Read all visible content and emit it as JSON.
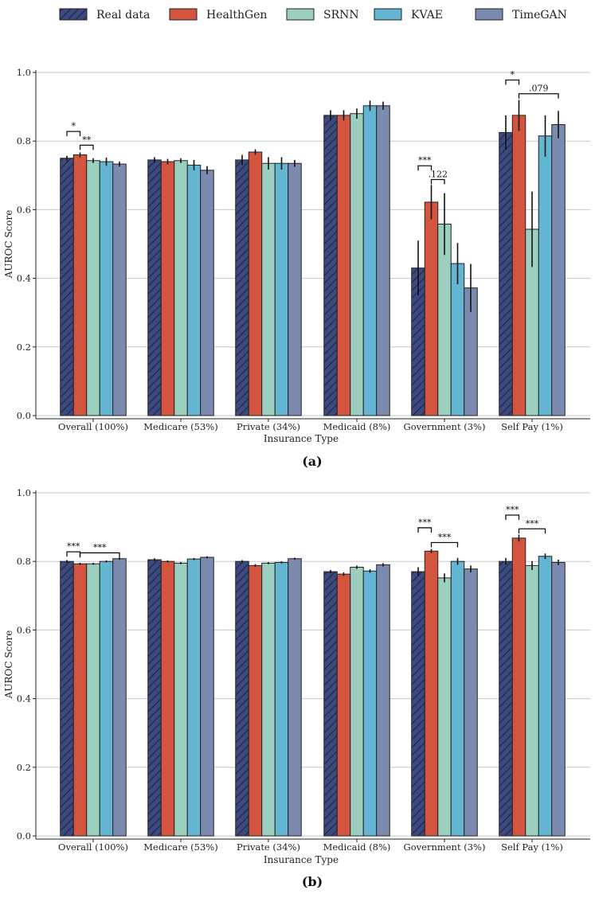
{
  "legend": [
    {
      "name": "Real data",
      "color": "#3d4a7e",
      "hatch": true
    },
    {
      "name": "HealthGen",
      "color": "#d35540",
      "hatch": false
    },
    {
      "name": "SRNN",
      "color": "#9ccfbf",
      "hatch": false
    },
    {
      "name": "KVAE",
      "color": "#63b5d1",
      "hatch": false
    },
    {
      "name": "TimeGAN",
      "color": "#7c8ab0",
      "hatch": false
    }
  ],
  "chart_data": [
    {
      "type": "bar",
      "panel_label": "(a)",
      "title": "",
      "xlabel": "Insurance Type",
      "ylabel": "AUROC Score",
      "ylim": [
        0,
        1.0
      ],
      "yticks": [
        "0.0",
        "0.2",
        "0.4",
        "0.6",
        "0.8",
        "1.0"
      ],
      "grid": true,
      "categories": [
        "Overall (100%)",
        "Medicare (53%)",
        "Private (34%)",
        "Medicaid (8%)",
        "Government (3%)",
        "Self Pay (1%)"
      ],
      "series": [
        {
          "name": "Real data",
          "values": [
            0.75,
            0.745,
            0.745,
            0.875,
            0.43,
            0.825
          ],
          "errors": [
            0.007,
            0.008,
            0.015,
            0.015,
            0.08,
            0.05
          ]
        },
        {
          "name": "HealthGen",
          "values": [
            0.76,
            0.74,
            0.768,
            0.875,
            0.622,
            0.875
          ],
          "errors": [
            0.007,
            0.008,
            0.008,
            0.015,
            0.05,
            0.045
          ]
        },
        {
          "name": "SRNN",
          "values": [
            0.743,
            0.743,
            0.735,
            0.88,
            0.558,
            0.543
          ],
          "errors": [
            0.007,
            0.007,
            0.018,
            0.015,
            0.09,
            0.11
          ]
        },
        {
          "name": "KVAE",
          "values": [
            0.74,
            0.73,
            0.735,
            0.903,
            0.443,
            0.815
          ],
          "errors": [
            0.012,
            0.015,
            0.018,
            0.015,
            0.06,
            0.06
          ]
        },
        {
          "name": "TimeGAN",
          "values": [
            0.733,
            0.715,
            0.735,
            0.903,
            0.372,
            0.848
          ],
          "errors": [
            0.007,
            0.012,
            0.01,
            0.012,
            0.07,
            0.04
          ]
        }
      ],
      "annotations": [
        {
          "category": 0,
          "from_series": 0,
          "to_series": 1,
          "level": 0.828,
          "label": "*"
        },
        {
          "category": 0,
          "from_series": 1,
          "to_series": 2,
          "level": 0.788,
          "label": "**"
        },
        {
          "category": 4,
          "from_series": 0,
          "to_series": 1,
          "level": 0.728,
          "label": "***"
        },
        {
          "category": 4,
          "from_series": 1,
          "to_series": 2,
          "level": 0.688,
          "label": ".122"
        },
        {
          "category": 5,
          "from_series": 0,
          "to_series": 1,
          "level": 0.978,
          "label": "*"
        },
        {
          "category": 5,
          "from_series": 1,
          "to_series": 4,
          "level": 0.938,
          "label": ".079"
        }
      ]
    },
    {
      "type": "bar",
      "panel_label": "(b)",
      "title": "",
      "xlabel": "Insurance Type",
      "ylabel": "AUROC Score",
      "ylim": [
        0,
        1.0
      ],
      "yticks": [
        "0.0",
        "0.2",
        "0.4",
        "0.6",
        "0.8",
        "1.0"
      ],
      "grid": true,
      "categories": [
        "Overall (100%)",
        "Medicare (53%)",
        "Private (34%)",
        "Medicaid (8%)",
        "Government (3%)",
        "Self Pay (1%)"
      ],
      "series": [
        {
          "name": "Real data",
          "values": [
            0.8,
            0.805,
            0.8,
            0.77,
            0.77,
            0.8
          ],
          "errors": [
            0.004,
            0.004,
            0.004,
            0.005,
            0.013,
            0.01
          ]
        },
        {
          "name": "HealthGen",
          "values": [
            0.793,
            0.8,
            0.788,
            0.763,
            0.83,
            0.868
          ],
          "errors": [
            0.003,
            0.003,
            0.004,
            0.005,
            0.006,
            0.01
          ]
        },
        {
          "name": "SRNN",
          "values": [
            0.793,
            0.795,
            0.795,
            0.783,
            0.752,
            0.788
          ],
          "errors": [
            0.003,
            0.003,
            0.003,
            0.005,
            0.013,
            0.013
          ]
        },
        {
          "name": "KVAE",
          "values": [
            0.8,
            0.807,
            0.797,
            0.772,
            0.8,
            0.815
          ],
          "errors": [
            0.003,
            0.003,
            0.003,
            0.005,
            0.01,
            0.008
          ]
        },
        {
          "name": "TimeGAN",
          "values": [
            0.808,
            0.812,
            0.808,
            0.79,
            0.778,
            0.797
          ],
          "errors": [
            0.003,
            0.003,
            0.003,
            0.005,
            0.01,
            0.008
          ]
        }
      ],
      "annotations": [
        {
          "category": 0,
          "from_series": 0,
          "to_series": 1,
          "level": 0.828,
          "label": "***"
        },
        {
          "category": 0,
          "from_series": 1,
          "to_series": 4,
          "level": 0.825,
          "label": "***"
        },
        {
          "category": 4,
          "from_series": 0,
          "to_series": 1,
          "level": 0.898,
          "label": "***"
        },
        {
          "category": 4,
          "from_series": 1,
          "to_series": 3,
          "level": 0.855,
          "label": "***"
        },
        {
          "category": 5,
          "from_series": 0,
          "to_series": 1,
          "level": 0.935,
          "label": "***"
        },
        {
          "category": 5,
          "from_series": 1,
          "to_series": 3,
          "level": 0.895,
          "label": "***"
        }
      ]
    }
  ]
}
